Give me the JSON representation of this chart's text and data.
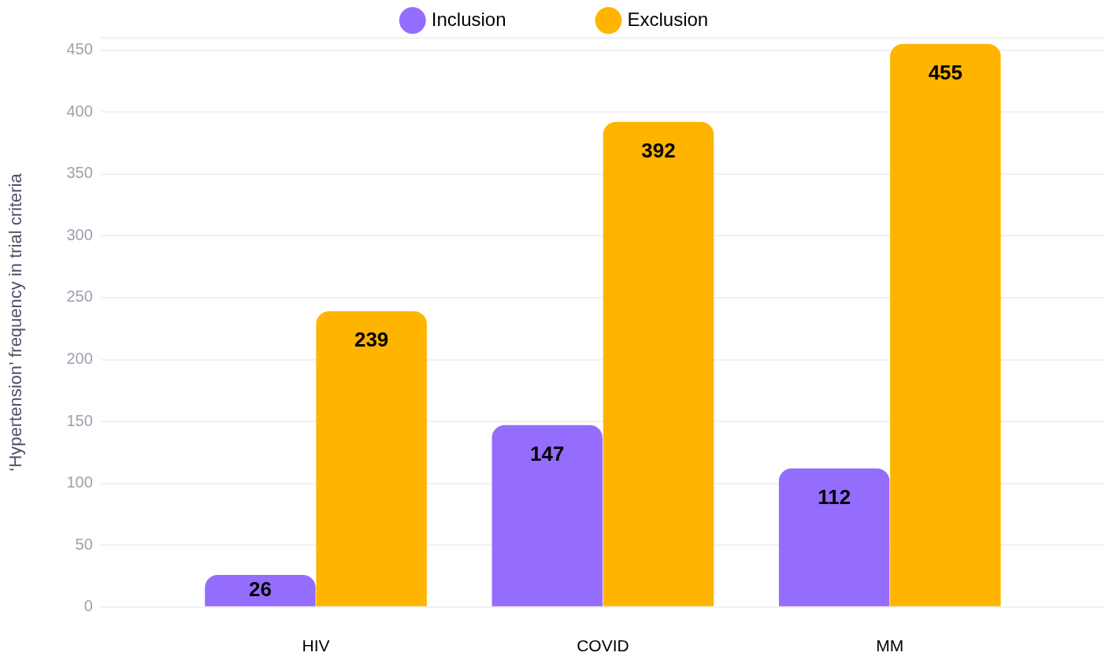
{
  "chart_data": {
    "type": "bar",
    "categories": [
      "HIV",
      "COVID",
      "MM"
    ],
    "series": [
      {
        "name": "Inclusion",
        "color": "#946dff",
        "values": [
          26,
          147,
          112
        ]
      },
      {
        "name": "Exclusion",
        "color": "#ffb400",
        "values": [
          239,
          392,
          455
        ]
      }
    ],
    "ylabel": "‘Hypertension’ frequency in trial criteria",
    "ylim": [
      0,
      460
    ],
    "yticks": [
      0,
      50,
      100,
      150,
      200,
      250,
      300,
      350,
      400,
      450,
      {
        "value": 460,
        "label": null
      }
    ],
    "grid": "y",
    "legend": "top",
    "data_labels": true
  }
}
